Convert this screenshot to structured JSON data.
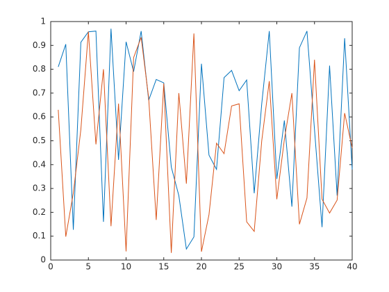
{
  "chart_data": {
    "type": "line",
    "x": [
      1,
      2,
      3,
      4,
      5,
      6,
      7,
      8,
      9,
      10,
      11,
      12,
      13,
      14,
      15,
      16,
      17,
      18,
      19,
      20,
      21,
      22,
      23,
      24,
      25,
      26,
      27,
      28,
      29,
      30,
      31,
      32,
      33,
      34,
      35,
      36,
      37,
      38,
      39,
      40
    ],
    "series": [
      {
        "color": "#0072bd",
        "values": [
          0.81,
          0.905,
          0.127,
          0.913,
          0.957,
          0.96,
          0.16,
          0.97,
          0.42,
          0.915,
          0.79,
          0.96,
          0.67,
          0.757,
          0.743,
          0.39,
          0.27,
          0.046,
          0.097,
          0.823,
          0.44,
          0.38,
          0.765,
          0.795,
          0.71,
          0.755,
          0.28,
          0.655,
          0.96,
          0.34,
          0.585,
          0.224,
          0.89,
          0.96,
          0.547,
          0.138,
          0.815,
          0.27,
          0.93,
          0.38
        ]
      },
      {
        "color": "#d95319",
        "values": [
          0.63,
          0.098,
          0.28,
          0.547,
          0.958,
          0.485,
          0.8,
          0.142,
          0.656,
          0.036,
          0.849,
          0.934,
          0.679,
          0.168,
          0.74,
          0.03,
          0.7,
          0.32,
          0.95,
          0.035,
          0.19,
          0.49,
          0.446,
          0.646,
          0.655,
          0.16,
          0.12,
          0.5,
          0.75,
          0.255,
          0.505,
          0.7,
          0.15,
          0.26,
          0.84,
          0.255,
          0.197,
          0.251,
          0.616,
          0.47
        ]
      }
    ],
    "xlim": [
      0,
      40
    ],
    "xticks": [
      0,
      5,
      10,
      15,
      20,
      25,
      30,
      35,
      40
    ],
    "ylim": [
      0,
      1
    ],
    "yticks": [
      0,
      0.1,
      0.2,
      0.3,
      0.4,
      0.5,
      0.6,
      0.7,
      0.8,
      0.9,
      1
    ],
    "grid": false
  }
}
